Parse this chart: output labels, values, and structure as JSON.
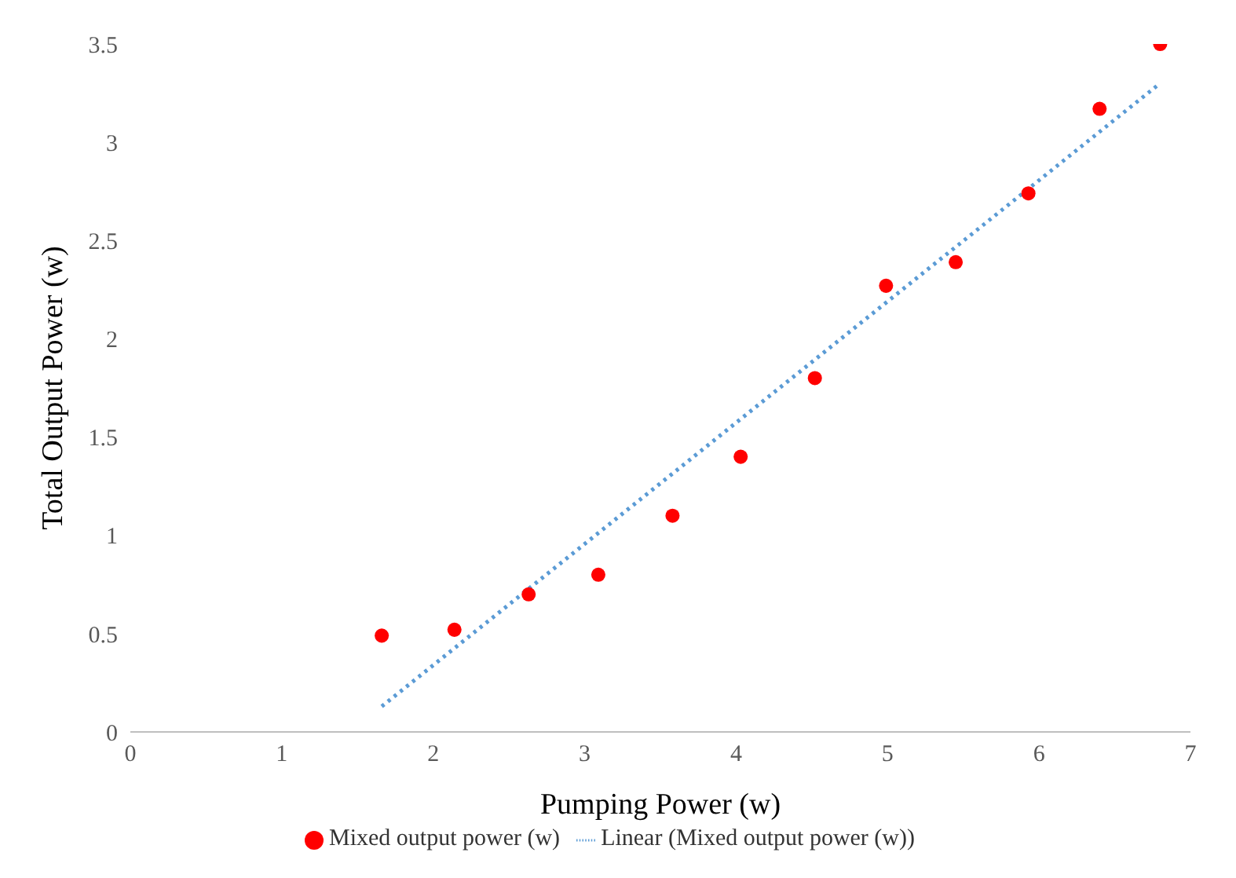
{
  "chart_data": {
    "type": "scatter",
    "xlabel": "Pumping Power (w)",
    "ylabel": "Total Output Power (w)",
    "xlim": [
      0,
      7
    ],
    "xticks": [
      0,
      1,
      2,
      3,
      4,
      5,
      6,
      7
    ],
    "ylim": [
      0,
      3.5
    ],
    "yticks": [
      0,
      0.5,
      1,
      1.5,
      2,
      2.5,
      3,
      3.5
    ],
    "grid": false,
    "legend": "bottom",
    "marker": "circle",
    "series": [
      {
        "name": "Mixed output power (w)",
        "color": "#ff0000",
        "x": [
          1.66,
          2.14,
          2.63,
          3.09,
          3.58,
          4.03,
          4.52,
          4.99,
          5.45,
          5.93,
          6.4,
          6.8
        ],
        "values": [
          0.49,
          0.52,
          0.7,
          0.8,
          1.1,
          1.4,
          1.8,
          2.27,
          2.39,
          2.74,
          3.17,
          3.5
        ]
      },
      {
        "name": "Linear (Mixed output power (w))",
        "type": "line",
        "line_style": "dotted",
        "marker": "none",
        "color": "#5b9bd5",
        "x": [
          1.66,
          6.8
        ],
        "values": [
          0.13,
          3.3
        ]
      }
    ]
  }
}
